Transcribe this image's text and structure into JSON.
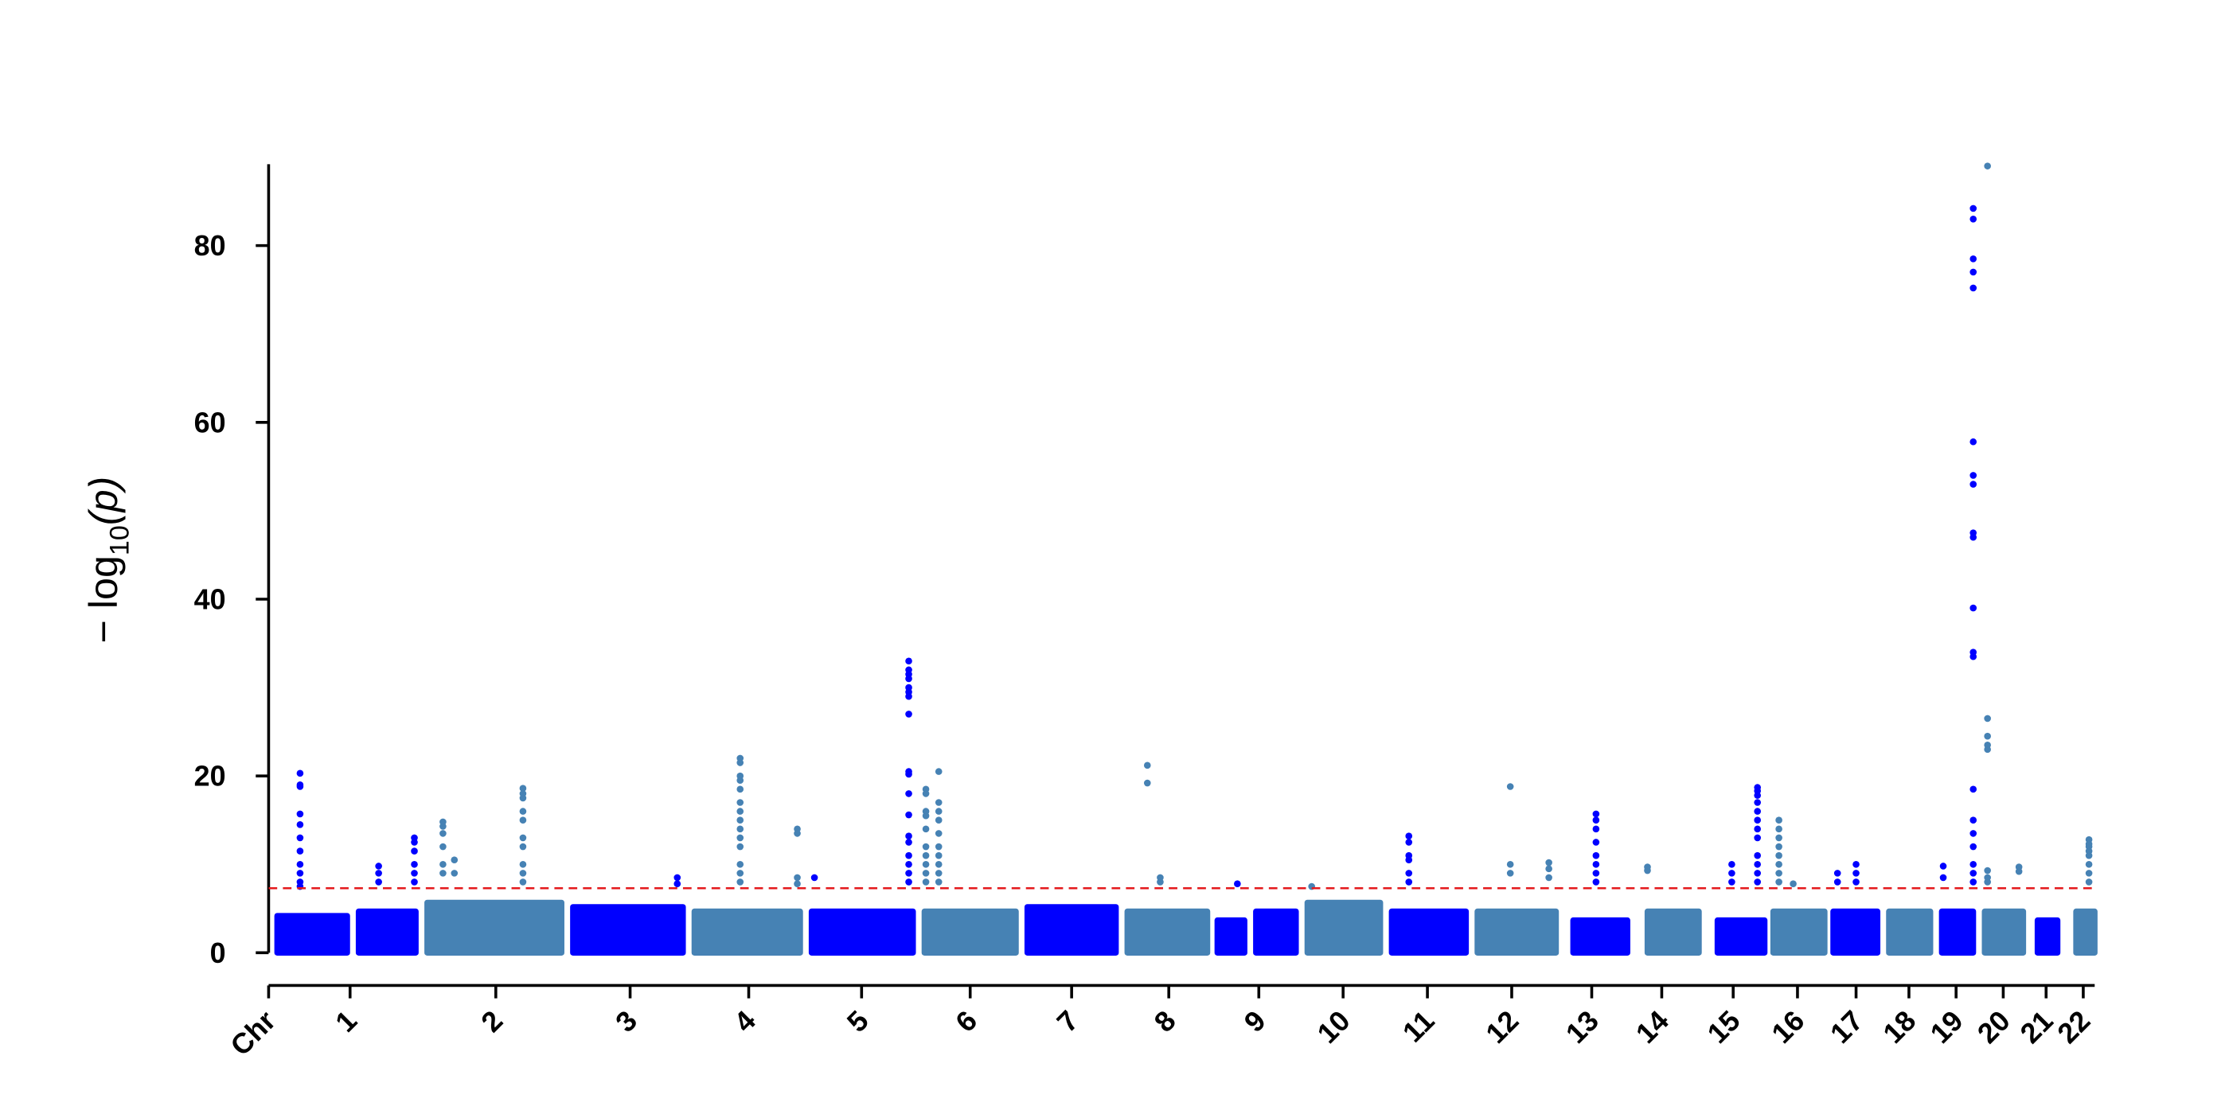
{
  "chart_data": {
    "type": "manhattan",
    "ylabel": {
      "prefix": "− log",
      "sub": "10",
      "suffix": "(p)"
    },
    "xlim": [
      0,
      1278
    ],
    "ylim": [
      -3.7,
      89.2
    ],
    "yticks": [
      0,
      20,
      40,
      60,
      80
    ],
    "xticks": [
      {
        "value": 0,
        "label": "Chr"
      },
      {
        "value": 57,
        "label": "1"
      },
      {
        "value": 159,
        "label": "2"
      },
      {
        "value": 253,
        "label": "3"
      },
      {
        "value": 336,
        "label": "4"
      },
      {
        "value": 415,
        "label": "5"
      },
      {
        "value": 491,
        "label": "6"
      },
      {
        "value": 562,
        "label": "7"
      },
      {
        "value": 630,
        "label": "8"
      },
      {
        "value": 693,
        "label": "9"
      },
      {
        "value": 752,
        "label": "10"
      },
      {
        "value": 811,
        "label": "11"
      },
      {
        "value": 870,
        "label": "12"
      },
      {
        "value": 926,
        "label": "13"
      },
      {
        "value": 975,
        "label": "14"
      },
      {
        "value": 1025,
        "label": "15"
      },
      {
        "value": 1070,
        "label": "16"
      },
      {
        "value": 1111,
        "label": "17"
      },
      {
        "value": 1148,
        "label": "18"
      },
      {
        "value": 1181,
        "label": "19"
      },
      {
        "value": 1214,
        "label": "20"
      },
      {
        "value": 1244,
        "label": "21"
      },
      {
        "value": 1270,
        "label": "22"
      }
    ],
    "threshold": {
      "value": 7.3,
      "color": "#e41a1c"
    },
    "bands": {
      "x0": [
        4,
        61,
        109,
        211,
        296,
        378,
        457,
        529,
        599,
        662,
        689,
        725,
        784,
        844,
        911,
        963,
        1012,
        1051,
        1093,
        1132,
        1169,
        1199,
        1236,
        1263
      ],
      "x1": [
        57,
        105,
        207,
        292,
        374,
        453,
        525,
        595,
        659,
        685,
        721,
        780,
        840,
        903,
        953,
        1003,
        1049,
        1091,
        1128,
        1165,
        1195,
        1230,
        1254,
        1280
      ],
      "values": [
        4.5,
        5,
        6,
        5.5,
        5,
        5,
        5,
        5.5,
        5,
        4,
        5,
        6,
        5,
        5,
        4,
        5,
        4,
        5,
        5,
        5,
        5,
        5,
        4,
        5
      ],
      "colors": [
        "#0000ff",
        "#0000ff",
        "#4682b4",
        "#0000ff",
        "#4682b4",
        "#0000ff",
        "#4682b4",
        "#0000ff",
        "#4682b4",
        "#0000ff",
        "#0000ff",
        "#4682b4",
        "#0000ff",
        "#4682b4",
        "#0000ff",
        "#4682b4",
        "#0000ff",
        "#4682b4",
        "#0000ff",
        "#4682b4",
        "#0000ff",
        "#4682b4",
        "#0000ff",
        "#4682b4"
      ]
    },
    "series": [
      {
        "color": "#0000ff",
        "peaks": [
          {
            "x": 22,
            "values": [
              20.3,
              19,
              18.8,
              15.7,
              14.5,
              13,
              11.5,
              10,
              9,
              8,
              7.5
            ]
          },
          {
            "x": 77,
            "values": [
              9.8,
              9,
              8
            ]
          },
          {
            "x": 102,
            "values": [
              13,
              12.5,
              11.5,
              10,
              9,
              8
            ]
          },
          {
            "x": 286,
            "values": [
              8.5,
              7.8
            ]
          },
          {
            "x": 382,
            "values": [
              8.5
            ]
          },
          {
            "x": 448,
            "values": [
              33,
              32,
              31.5,
              31,
              30,
              29.5,
              29,
              27,
              20.5,
              20.2,
              18,
              15.6,
              13.2,
              12.5,
              11,
              10,
              9,
              8
            ]
          },
          {
            "x": 678,
            "values": [
              7.8
            ]
          },
          {
            "x": 798,
            "values": [
              13.2,
              12.5,
              11,
              10.5,
              9,
              8
            ]
          },
          {
            "x": 929,
            "values": [
              15.7,
              15,
              14,
              12.5,
              11,
              10,
              9,
              8
            ]
          },
          {
            "x": 1024,
            "values": [
              10,
              9,
              8
            ]
          },
          {
            "x": 1042,
            "values": [
              18.7,
              18.3,
              17.8,
              17,
              16,
              15,
              14,
              13,
              11,
              10,
              9,
              8
            ]
          },
          {
            "x": 1098,
            "values": [
              9,
              8
            ]
          },
          {
            "x": 1111,
            "values": [
              10,
              9,
              8
            ]
          },
          {
            "x": 1172,
            "values": [
              9.8,
              8.5
            ]
          },
          {
            "x": 1193,
            "values": [
              84.2,
              83,
              78.5,
              77,
              75.2,
              57.8,
              54,
              53,
              47.5,
              47,
              39,
              34,
              33.5,
              18.5,
              15,
              13.5,
              12,
              10,
              9,
              8
            ]
          }
        ]
      },
      {
        "color": "#4682b4",
        "peaks": [
          {
            "x": 122,
            "values": [
              14.8,
              14.3,
              13.5,
              12,
              10,
              9
            ]
          },
          {
            "x": 130,
            "values": [
              10.5,
              9
            ]
          },
          {
            "x": 178,
            "values": [
              18.6,
              18,
              17.5,
              16,
              15,
              13,
              12,
              10,
              9,
              8
            ]
          },
          {
            "x": 330,
            "values": [
              22,
              21.5,
              20,
              19.5,
              18.5,
              17,
              16,
              15,
              14,
              13,
              12,
              10,
              9,
              8
            ]
          },
          {
            "x": 370,
            "values": [
              14,
              13.5,
              8.5,
              7.8
            ]
          },
          {
            "x": 460,
            "values": [
              18.5,
              18,
              16,
              15.5,
              14,
              12,
              11,
              10,
              9,
              8
            ]
          },
          {
            "x": 469,
            "values": [
              20.5,
              17,
              16,
              15,
              13.5,
              12,
              11,
              10,
              9,
              8
            ]
          },
          {
            "x": 615,
            "values": [
              21.2,
              19.2
            ]
          },
          {
            "x": 624,
            "values": [
              8.5,
              8
            ]
          },
          {
            "x": 730,
            "values": [
              7.5
            ]
          },
          {
            "x": 869,
            "values": [
              18.8,
              10,
              9
            ]
          },
          {
            "x": 896,
            "values": [
              10.2,
              9.5,
              8.5
            ]
          },
          {
            "x": 965,
            "values": [
              9.7,
              9.3
            ]
          },
          {
            "x": 1057,
            "values": [
              15,
              14,
              13,
              12,
              11,
              10,
              9,
              8
            ]
          },
          {
            "x": 1067,
            "values": [
              7.8
            ]
          },
          {
            "x": 1203,
            "values": [
              89,
              26.5,
              24.5,
              23.5,
              23,
              9.3,
              8.5,
              8
            ]
          },
          {
            "x": 1225,
            "values": [
              9.7,
              9.2
            ]
          },
          {
            "x": 1274,
            "values": [
              12.8,
              12.3,
              12,
              11.5,
              11,
              10,
              9,
              8
            ]
          }
        ]
      }
    ]
  }
}
